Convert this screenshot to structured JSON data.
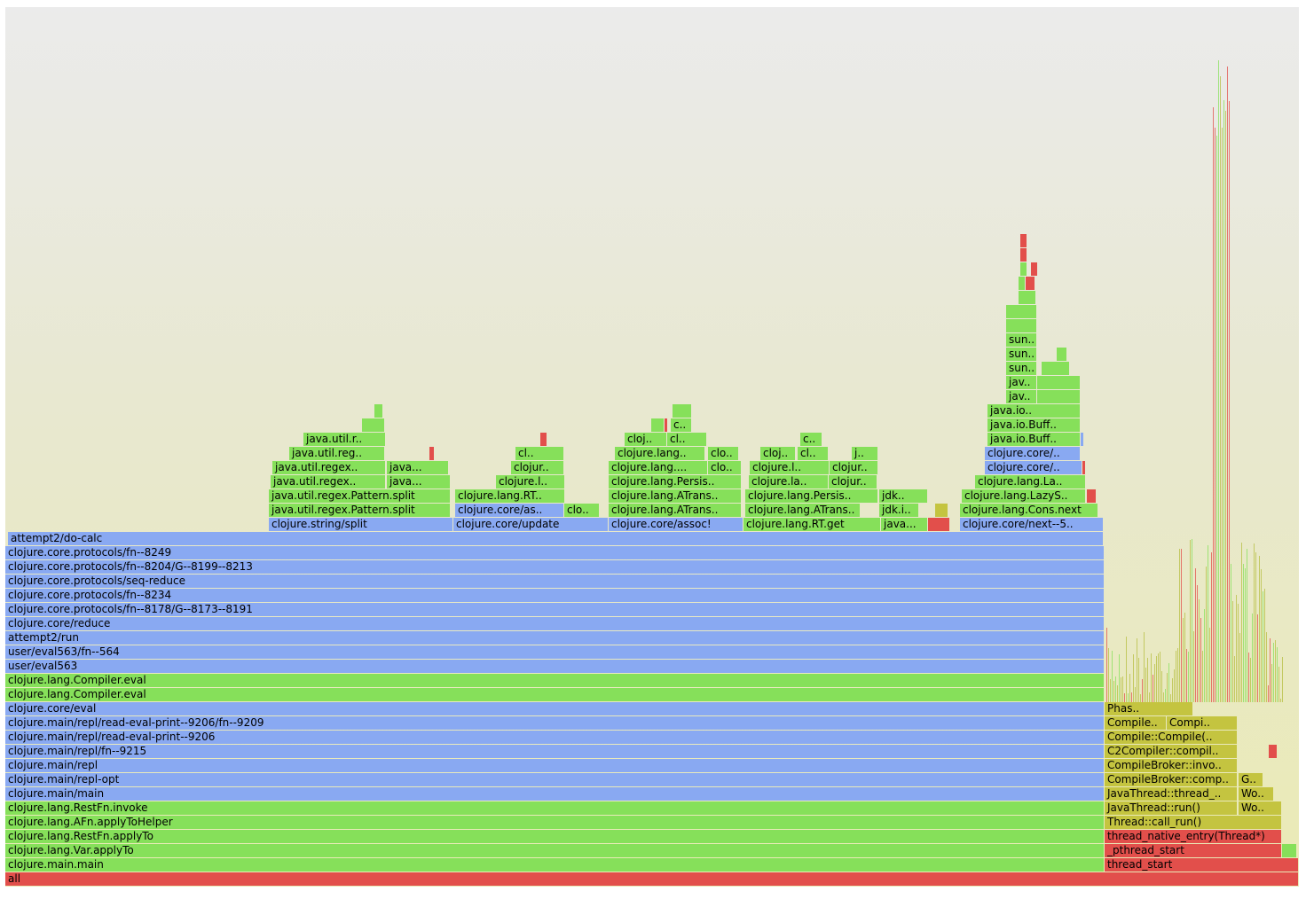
{
  "colors": {
    "jvm": "#86e05a",
    "clj": "#89a9f2",
    "native": "#e24f4b",
    "compiler": "#c4c440",
    "sliver": "#b5bd40"
  },
  "chart_data": {
    "type": "flamegraph",
    "title": "",
    "total_samples": 1458,
    "rows": [
      [
        {
          "start": 0,
          "width": 1458,
          "kind": "native",
          "label": "all"
        }
      ],
      [
        {
          "start": 0,
          "width": 1239,
          "kind": "jvm",
          "label": "clojure.main.main"
        },
        {
          "start": 1239,
          "width": 219,
          "kind": "native",
          "label": "thread_start"
        }
      ],
      [
        {
          "start": 0,
          "width": 1239,
          "kind": "jvm",
          "label": "clojure.lang.Var.applyTo"
        },
        {
          "start": 1239,
          "width": 200,
          "kind": "native",
          "label": "_pthread_start"
        },
        {
          "start": 1439,
          "width": 17,
          "kind": "jvm",
          "label": ""
        }
      ],
      [
        {
          "start": 0,
          "width": 1239,
          "kind": "jvm",
          "label": "clojure.lang.RestFn.applyTo"
        },
        {
          "start": 1239,
          "width": 200,
          "kind": "native",
          "label": "thread_native_entry(Thread*)"
        }
      ],
      [
        {
          "start": 0,
          "width": 1239,
          "kind": "jvm",
          "label": "clojure.lang.AFn.applyToHelper"
        },
        {
          "start": 1239,
          "width": 200,
          "kind": "compiler",
          "label": "Thread::call_run()"
        }
      ],
      [
        {
          "start": 0,
          "width": 1239,
          "kind": "jvm",
          "label": "clojure.lang.RestFn.invoke"
        },
        {
          "start": 1239,
          "width": 150,
          "kind": "compiler",
          "label": "JavaThread::run()"
        },
        {
          "start": 1390,
          "width": 49,
          "kind": "compiler",
          "label": "Wo.."
        }
      ],
      [
        {
          "start": 0,
          "width": 1239,
          "kind": "clj",
          "label": "clojure.main/main"
        },
        {
          "start": 1239,
          "width": 150,
          "kind": "compiler",
          "label": "JavaThread::thread_.."
        },
        {
          "start": 1390,
          "width": 40,
          "kind": "compiler",
          "label": "Wo.."
        }
      ],
      [
        {
          "start": 0,
          "width": 1239,
          "kind": "clj",
          "label": "clojure.main/repl-opt"
        },
        {
          "start": 1239,
          "width": 150,
          "kind": "compiler",
          "label": "CompileBroker::comp.."
        },
        {
          "start": 1390,
          "width": 28,
          "kind": "compiler",
          "label": "G.."
        }
      ],
      [
        {
          "start": 0,
          "width": 1239,
          "kind": "clj",
          "label": "clojure.main/repl"
        },
        {
          "start": 1239,
          "width": 150,
          "kind": "compiler",
          "label": "CompileBroker::invo.."
        }
      ],
      [
        {
          "start": 0,
          "width": 1239,
          "kind": "clj",
          "label": "clojure.main/repl/fn--9215"
        },
        {
          "start": 1239,
          "width": 150,
          "kind": "compiler",
          "label": "C2Compiler::compil.."
        },
        {
          "start": 1424,
          "width": 10,
          "kind": "native",
          "label": ""
        }
      ],
      [
        {
          "start": 0,
          "width": 1239,
          "kind": "clj",
          "label": "clojure.main/repl/read-eval-print--9206"
        },
        {
          "start": 1239,
          "width": 150,
          "kind": "compiler",
          "label": "Compile::Compile(.."
        }
      ],
      [
        {
          "start": 0,
          "width": 1239,
          "kind": "clj",
          "label": "clojure.main/repl/read-eval-print--9206/fn--9209"
        },
        {
          "start": 1239,
          "width": 70,
          "kind": "compiler",
          "label": "Compile.."
        },
        {
          "start": 1309,
          "width": 80,
          "kind": "compiler",
          "label": "Compi.."
        }
      ],
      [
        {
          "start": 0,
          "width": 1239,
          "kind": "clj",
          "label": "clojure.core/eval"
        },
        {
          "start": 1239,
          "width": 100,
          "kind": "compiler",
          "label": "Phas.."
        }
      ],
      [
        {
          "start": 0,
          "width": 1239,
          "kind": "jvm",
          "label": "clojure.lang.Compiler.eval"
        }
      ],
      [
        {
          "start": 0,
          "width": 1239,
          "kind": "jvm",
          "label": "clojure.lang.Compiler.eval"
        }
      ],
      [
        {
          "start": 0,
          "width": 1239,
          "kind": "clj",
          "label": "user/eval563"
        }
      ],
      [
        {
          "start": 0,
          "width": 1239,
          "kind": "clj",
          "label": "user/eval563/fn--564"
        }
      ],
      [
        {
          "start": 0,
          "width": 1239,
          "kind": "clj",
          "label": "attempt2/run"
        }
      ],
      [
        {
          "start": 0,
          "width": 1239,
          "kind": "clj",
          "label": "clojure.core/reduce"
        }
      ],
      [
        {
          "start": 0,
          "width": 1239,
          "kind": "clj",
          "label": "clojure.core.protocols/fn--8178/G--8173--8191"
        }
      ],
      [
        {
          "start": 0,
          "width": 1239,
          "kind": "clj",
          "label": "clojure.core.protocols/fn--8234"
        }
      ],
      [
        {
          "start": 0,
          "width": 1239,
          "kind": "clj",
          "label": "clojure.core.protocols/seq-reduce"
        }
      ],
      [
        {
          "start": 0,
          "width": 1239,
          "kind": "clj",
          "label": "clojure.core.protocols/fn--8204/G--8199--8213"
        }
      ],
      [
        {
          "start": 0,
          "width": 1239,
          "kind": "clj",
          "label": "clojure.core.protocols/fn--8249"
        }
      ],
      [
        {
          "start": 3,
          "width": 1235,
          "kind": "clj",
          "label": "attempt2/do-calc"
        }
      ],
      [
        {
          "start": 297,
          "width": 208,
          "kind": "clj",
          "label": "clojure.string/split"
        },
        {
          "start": 505,
          "width": 175,
          "kind": "clj",
          "label": "clojure.core/update"
        },
        {
          "start": 680,
          "width": 152,
          "kind": "clj",
          "label": "clojure.core/assoc!"
        },
        {
          "start": 832,
          "width": 155,
          "kind": "jvm",
          "label": "clojure.lang.RT.get"
        },
        {
          "start": 987,
          "width": 53,
          "kind": "jvm",
          "label": "java..."
        },
        {
          "start": 1040,
          "width": 25,
          "kind": "native",
          "label": ""
        },
        {
          "start": 1076,
          "width": 162,
          "kind": "clj",
          "label": "clojure.core/next--5.."
        }
      ],
      [
        {
          "start": 297,
          "width": 205,
          "kind": "jvm",
          "label": "java.util.regex.Pattern.split"
        },
        {
          "start": 507,
          "width": 123,
          "kind": "clj",
          "label": "clojure.core/as.."
        },
        {
          "start": 630,
          "width": 40,
          "kind": "jvm",
          "label": "clo.."
        },
        {
          "start": 680,
          "width": 150,
          "kind": "jvm",
          "label": "clojure.lang.ATrans.."
        },
        {
          "start": 834,
          "width": 130,
          "kind": "jvm",
          "label": "clojure.lang.ATrans.."
        },
        {
          "start": 985,
          "width": 45,
          "kind": "jvm",
          "label": "jdk.i.."
        },
        {
          "start": 1048,
          "width": 15,
          "kind": "compiler",
          "label": ""
        },
        {
          "start": 1076,
          "width": 156,
          "kind": "jvm",
          "label": "clojure.lang.Cons.next"
        }
      ],
      [
        {
          "start": 297,
          "width": 205,
          "kind": "jvm",
          "label": "java.util.regex.Pattern.split"
        },
        {
          "start": 507,
          "width": 124,
          "kind": "jvm",
          "label": "clojure.lang.RT.."
        },
        {
          "start": 680,
          "width": 150,
          "kind": "jvm",
          "label": "clojure.lang.ATrans.."
        },
        {
          "start": 834,
          "width": 150,
          "kind": "jvm",
          "label": "clojure.lang.Persis.."
        },
        {
          "start": 985,
          "width": 55,
          "kind": "jvm",
          "label": "jdk.."
        },
        {
          "start": 1078,
          "width": 140,
          "kind": "jvm",
          "label": "clojure.lang.LazyS.."
        },
        {
          "start": 1219,
          "width": 11,
          "kind": "native",
          "label": ""
        }
      ],
      [
        {
          "start": 299,
          "width": 130,
          "kind": "jvm",
          "label": "java.util.regex.."
        },
        {
          "start": 430,
          "width": 72,
          "kind": "jvm",
          "label": "java..."
        },
        {
          "start": 553,
          "width": 78,
          "kind": "jvm",
          "label": "clojure.l.."
        },
        {
          "start": 680,
          "width": 150,
          "kind": "jvm",
          "label": "clojure.lang.Persis.."
        },
        {
          "start": 838,
          "width": 90,
          "kind": "jvm",
          "label": "clojure.la.."
        },
        {
          "start": 928,
          "width": 55,
          "kind": "jvm",
          "label": "clojur.."
        },
        {
          "start": 1093,
          "width": 125,
          "kind": "jvm",
          "label": "clojure.lang.La.."
        }
      ],
      [
        {
          "start": 301,
          "width": 128,
          "kind": "jvm",
          "label": "java.util.regex.."
        },
        {
          "start": 430,
          "width": 70,
          "kind": "jvm",
          "label": "java..."
        },
        {
          "start": 570,
          "width": 60,
          "kind": "jvm",
          "label": "clojur.."
        },
        {
          "start": 680,
          "width": 112,
          "kind": "jvm",
          "label": "clojure.lang...."
        },
        {
          "start": 792,
          "width": 38,
          "kind": "jvm",
          "label": "clo.."
        },
        {
          "start": 839,
          "width": 90,
          "kind": "jvm",
          "label": "clojure.l.."
        },
        {
          "start": 929,
          "width": 55,
          "kind": "jvm",
          "label": "clojur.."
        },
        {
          "start": 1104,
          "width": 110,
          "kind": "clj",
          "label": "clojure.core/.."
        },
        {
          "start": 1214,
          "width": 3,
          "kind": "native",
          "label": ""
        }
      ],
      [
        {
          "start": 320,
          "width": 108,
          "kind": "jvm",
          "label": "java.util.reg.."
        },
        {
          "start": 478,
          "width": 6,
          "kind": "native",
          "label": ""
        },
        {
          "start": 575,
          "width": 55,
          "kind": "jvm",
          "label": "cl.."
        },
        {
          "start": 687,
          "width": 102,
          "kind": "jvm",
          "label": "clojure.lang.."
        },
        {
          "start": 792,
          "width": 35,
          "kind": "jvm",
          "label": "clo.."
        },
        {
          "start": 851,
          "width": 40,
          "kind": "jvm",
          "label": "cloj.."
        },
        {
          "start": 893,
          "width": 35,
          "kind": "jvm",
          "label": "cl.."
        },
        {
          "start": 954,
          "width": 30,
          "kind": "jvm",
          "label": "j.."
        },
        {
          "start": 1104,
          "width": 108,
          "kind": "clj",
          "label": "clojure.core/.."
        }
      ],
      [
        {
          "start": 336,
          "width": 93,
          "kind": "jvm",
          "label": "java.util.r.."
        },
        {
          "start": 603,
          "width": 8,
          "kind": "native",
          "label": ""
        },
        {
          "start": 698,
          "width": 48,
          "kind": "jvm",
          "label": "cloj.."
        },
        {
          "start": 746,
          "width": 45,
          "kind": "jvm",
          "label": "cl.."
        },
        {
          "start": 896,
          "width": 25,
          "kind": "jvm",
          "label": "c.."
        },
        {
          "start": 1107,
          "width": 105,
          "kind": "jvm",
          "label": "java.io.Buff.."
        },
        {
          "start": 1212,
          "width": 3,
          "kind": "clj",
          "label": ""
        }
      ],
      [
        {
          "start": 402,
          "width": 26,
          "kind": "jvm",
          "label": ""
        },
        {
          "start": 728,
          "width": 15,
          "kind": "jvm",
          "label": ""
        },
        {
          "start": 743,
          "width": 3,
          "kind": "native",
          "label": ""
        },
        {
          "start": 750,
          "width": 24,
          "kind": "jvm",
          "label": "c.."
        },
        {
          "start": 1107,
          "width": 105,
          "kind": "jvm",
          "label": "java.io.Buff.."
        }
      ],
      [
        {
          "start": 416,
          "width": 10,
          "kind": "jvm",
          "label": ""
        },
        {
          "start": 752,
          "width": 22,
          "kind": "jvm",
          "label": ""
        },
        {
          "start": 1107,
          "width": 105,
          "kind": "jvm",
          "label": "java.io.."
        }
      ],
      [
        {
          "start": 1128,
          "width": 35,
          "kind": "jvm",
          "label": "jav.."
        },
        {
          "start": 1163,
          "width": 49,
          "kind": "jvm",
          "label": ""
        }
      ],
      [
        {
          "start": 1128,
          "width": 35,
          "kind": "jvm",
          "label": "jav.."
        },
        {
          "start": 1163,
          "width": 49,
          "kind": "jvm",
          "label": ""
        }
      ],
      [
        {
          "start": 1128,
          "width": 35,
          "kind": "jvm",
          "label": "sun.."
        },
        {
          "start": 1168,
          "width": 32,
          "kind": "jvm",
          "label": ""
        }
      ],
      [
        {
          "start": 1128,
          "width": 35,
          "kind": "jvm",
          "label": "sun.."
        },
        {
          "start": 1185,
          "width": 12,
          "kind": "jvm",
          "label": ""
        }
      ],
      [
        {
          "start": 1128,
          "width": 35,
          "kind": "jvm",
          "label": "sun.."
        }
      ],
      [
        {
          "start": 1128,
          "width": 35,
          "kind": "jvm",
          "label": ""
        }
      ],
      [
        {
          "start": 1128,
          "width": 35,
          "kind": "jvm",
          "label": ""
        }
      ],
      [
        {
          "start": 1142,
          "width": 20,
          "kind": "jvm",
          "label": ""
        }
      ],
      [
        {
          "start": 1142,
          "width": 8,
          "kind": "jvm",
          "label": ""
        },
        {
          "start": 1150,
          "width": 3,
          "kind": "native",
          "label": ""
        },
        {
          "start": 1153,
          "width": 8,
          "kind": "native",
          "label": ""
        }
      ],
      [
        {
          "start": 1144,
          "width": 8,
          "kind": "jvm",
          "label": ""
        },
        {
          "start": 1156,
          "width": 8,
          "kind": "native",
          "label": ""
        }
      ],
      [
        {
          "start": 1144,
          "width": 8,
          "kind": "native",
          "label": ""
        }
      ],
      [
        {
          "start": 1144,
          "width": 8,
          "kind": "native",
          "label": ""
        }
      ]
    ]
  }
}
